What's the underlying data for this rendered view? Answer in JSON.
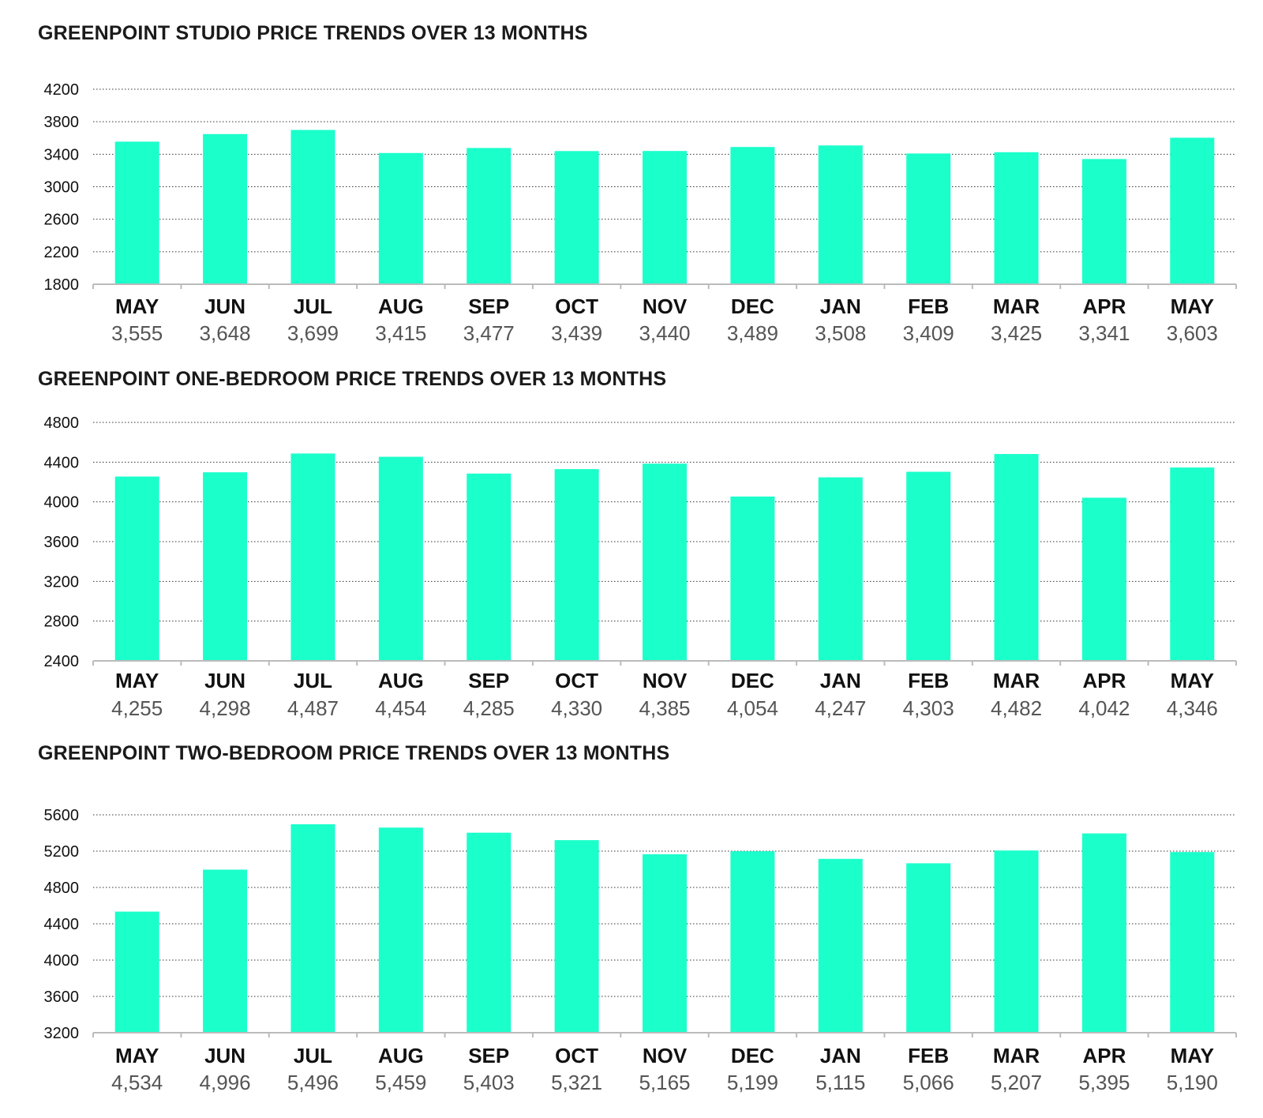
{
  "colors": {
    "bar": "#1bffcb",
    "grid": "#333333",
    "axis": "#bbbbbb"
  },
  "chart_data": [
    {
      "type": "bar",
      "title": "GREENPOINT STUDIO PRICE TRENDS OVER 13 MONTHS",
      "categories": [
        "MAY",
        "JUN",
        "JUL",
        "AUG",
        "SEP",
        "OCT",
        "NOV",
        "DEC",
        "JAN",
        "FEB",
        "MAR",
        "APR",
        "MAY"
      ],
      "values": [
        3555,
        3648,
        3699,
        3415,
        3477,
        3439,
        3440,
        3489,
        3508,
        3409,
        3425,
        3341,
        3603
      ],
      "value_labels": [
        "3,555",
        "3,648",
        "3,699",
        "3,415",
        "3,477",
        "3,439",
        "3,440",
        "3,489",
        "3,508",
        "3,409",
        "3,425",
        "3,341",
        "3,603"
      ],
      "yticks": [
        1800,
        2200,
        2600,
        3000,
        3400,
        3800,
        4200
      ],
      "ylim": [
        1800,
        4200
      ],
      "xlabel": "",
      "ylabel": ""
    },
    {
      "type": "bar",
      "title": "GREENPOINT ONE-BEDROOM PRICE TRENDS OVER 13 MONTHS",
      "categories": [
        "MAY",
        "JUN",
        "JUL",
        "AUG",
        "SEP",
        "OCT",
        "NOV",
        "DEC",
        "JAN",
        "FEB",
        "MAR",
        "APR",
        "MAY"
      ],
      "values": [
        4255,
        4298,
        4487,
        4454,
        4285,
        4330,
        4385,
        4054,
        4247,
        4303,
        4482,
        4042,
        4346
      ],
      "value_labels": [
        "4,255",
        "4,298",
        "4,487",
        "4,454",
        "4,285",
        "4,330",
        "4,385",
        "4,054",
        "4,247",
        "4,303",
        "4,482",
        "4,042",
        "4,346"
      ],
      "yticks": [
        2400,
        2800,
        3200,
        3600,
        4000,
        4400,
        4800
      ],
      "ylim": [
        2400,
        4800
      ],
      "xlabel": "",
      "ylabel": ""
    },
    {
      "type": "bar",
      "title": "GREENPOINT TWO-BEDROOM PRICE TRENDS OVER 13 MONTHS",
      "categories": [
        "MAY",
        "JUN",
        "JUL",
        "AUG",
        "SEP",
        "OCT",
        "NOV",
        "DEC",
        "JAN",
        "FEB",
        "MAR",
        "APR",
        "MAY"
      ],
      "values": [
        4534,
        4996,
        5496,
        5459,
        5403,
        5321,
        5165,
        5199,
        5115,
        5066,
        5207,
        5395,
        5190
      ],
      "value_labels": [
        "4,534",
        "4,996",
        "5,496",
        "5,459",
        "5,403",
        "5,321",
        "5,165",
        "5,199",
        "5,115",
        "5,066",
        "5,207",
        "5,395",
        "5,190"
      ],
      "yticks": [
        3200,
        3600,
        4000,
        4400,
        4800,
        5200,
        5600
      ],
      "ylim": [
        3200,
        5600
      ],
      "xlabel": "",
      "ylabel": ""
    }
  ]
}
